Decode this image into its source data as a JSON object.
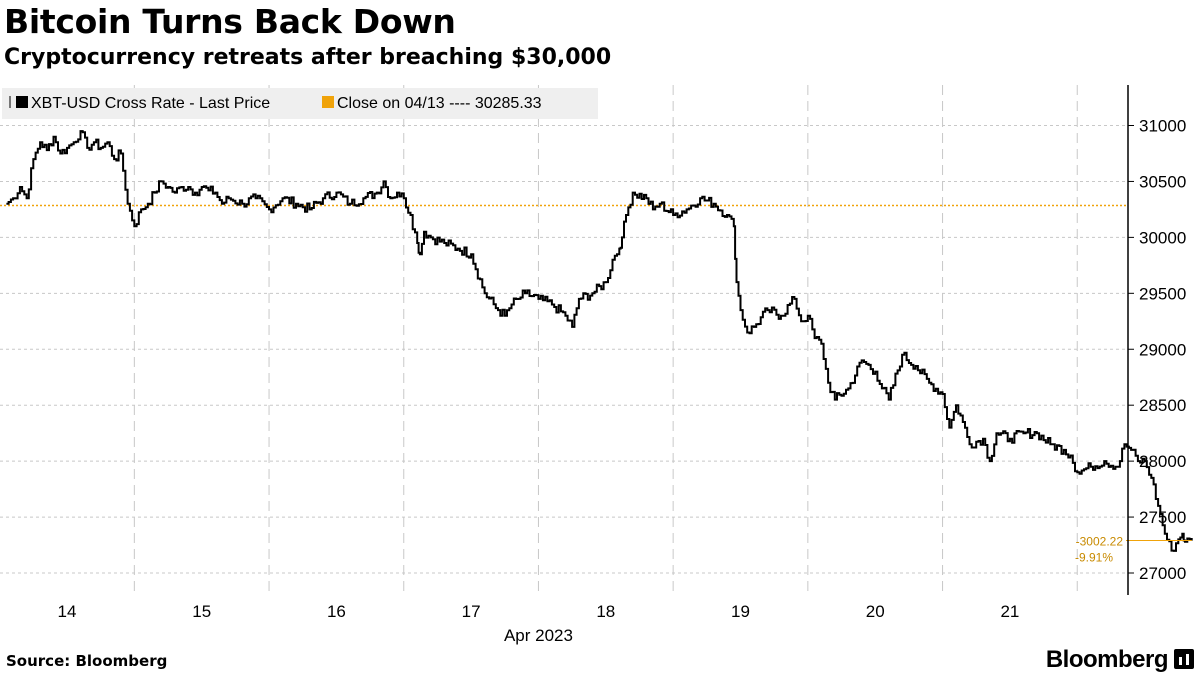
{
  "header": {
    "title": "Bitcoin Turns Back Down",
    "subtitle": "Cryptocurrency retreats after breaching $30,000"
  },
  "footer": {
    "source": "Source: Bloomberg",
    "brand": "Bloomberg"
  },
  "colors": {
    "line": "#000000",
    "reference": "#f0a30a",
    "reference_text": "#c88a00",
    "grid": "#c8c8c8",
    "legend_bg": "#efefef"
  },
  "chart_data": {
    "type": "line",
    "legend": [
      {
        "label": "XBT-USD Cross Rate - Last Price",
        "color": "#000000"
      },
      {
        "label": "Close on 04/13 ---- 30285.33",
        "color": "#f0a30a"
      }
    ],
    "legend_placement": "top-left",
    "x_tick_labels": [
      "14",
      "15",
      "16",
      "17",
      "18",
      "19",
      "20",
      "21"
    ],
    "x_axis_label": "Apr 2023",
    "y_ticks": [
      27000,
      27500,
      28000,
      28500,
      29000,
      29500,
      30000,
      30500,
      31000
    ],
    "y_tick_labels": [
      "27000",
      "27500",
      "28000",
      "28500",
      "29000",
      "29500",
      "30000",
      "30500",
      "31000"
    ],
    "ylim": [
      26880,
      31380
    ],
    "x_range_days": [
      -0.45,
      8.45
    ],
    "grid": true,
    "reference_line": {
      "value": 30285.33
    },
    "end_labels": {
      "change": "-3002.22",
      "percent": "-9.91%"
    },
    "series": [
      {
        "x_days": [
          -0.45,
          -0.4,
          -0.35,
          -0.3,
          -0.25,
          -0.2,
          -0.15,
          -0.1,
          -0.05,
          0,
          0.05,
          0.1,
          0.15,
          0.2,
          0.25,
          0.3,
          0.35,
          0.4,
          0.45,
          0.5,
          0.55,
          0.6,
          0.65,
          0.7,
          0.75,
          0.8,
          0.85,
          0.9,
          0.95,
          1.0,
          1.05,
          1.1,
          1.15,
          1.2,
          1.3,
          1.4,
          1.5,
          1.6,
          1.7,
          1.8,
          1.9,
          2.0,
          2.1,
          2.2,
          2.3,
          2.35,
          2.4,
          2.45,
          2.5,
          2.55,
          2.6,
          2.62,
          2.65,
          2.7,
          2.8,
          2.9,
          3.0,
          3.1,
          3.2,
          3.25,
          3.3,
          3.35,
          3.4,
          3.5,
          3.6,
          3.7,
          3.75,
          3.8,
          3.9,
          4.0,
          4.05,
          4.1,
          4.12,
          4.15,
          4.2,
          4.3,
          4.35,
          4.4,
          4.5,
          4.6,
          4.7,
          4.8,
          4.9,
          4.95,
          4.97,
          5.0,
          5.05,
          5.1,
          5.2,
          5.3,
          5.4,
          5.45,
          5.5,
          5.55,
          5.6,
          5.65,
          5.7,
          5.8,
          5.9,
          6.0,
          6.05,
          6.1,
          6.2,
          6.3,
          6.4,
          6.5,
          6.55,
          6.6,
          6.65,
          6.7,
          6.8,
          6.85,
          6.9,
          7.0,
          7.1,
          7.2,
          7.3,
          7.4,
          7.45,
          7.5,
          7.6,
          7.7,
          7.8,
          7.85,
          7.9,
          7.95,
          8.0,
          8.05,
          8.1,
          8.15,
          8.2,
          8.25,
          8.28,
          8.3,
          8.35
        ],
        "values": [
          30300,
          30350,
          30450,
          30350,
          30700,
          30850,
          30780,
          30900,
          30750,
          30800,
          30850,
          30950,
          30800,
          30850,
          30800,
          30850,
          30700,
          30750,
          30300,
          30100,
          30250,
          30300,
          30400,
          30500,
          30450,
          30400,
          30450,
          30450,
          30400,
          30450,
          30420,
          30400,
          30300,
          30350,
          30300,
          30350,
          30250,
          30350,
          30300,
          30250,
          30350,
          30400,
          30300,
          30350,
          30400,
          30500,
          30350,
          30400,
          30350,
          30200,
          29950,
          29850,
          30050,
          30000,
          29950,
          29900,
          29850,
          29500,
          29350,
          29300,
          29400,
          29450,
          29500,
          29450,
          29400,
          29300,
          29200,
          29450,
          29500,
          29600,
          29800,
          29900,
          30000,
          30200,
          30400,
          30350,
          30250,
          30300,
          30200,
          30250,
          30350,
          30300,
          30200,
          30100,
          29600,
          29350,
          29150,
          29200,
          29350,
          29300,
          29450,
          29250,
          29300,
          29100,
          29050,
          28700,
          28550,
          28650,
          28900,
          28800,
          28650,
          28550,
          28950,
          28850,
          28700,
          28600,
          28300,
          28500,
          28350,
          28150,
          28200,
          28000,
          28250,
          28200,
          28250,
          28250,
          28150,
          28100,
          28050,
          27900,
          27950,
          28000,
          27950,
          28150,
          28100,
          28000,
          28000,
          27850,
          27600,
          27350,
          27200,
          27300,
          27350,
          27280,
          27290
        ]
      }
    ]
  }
}
